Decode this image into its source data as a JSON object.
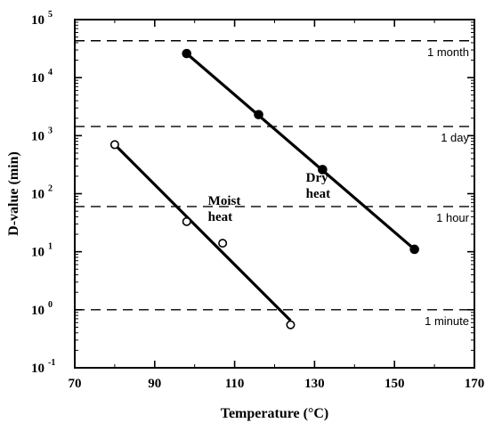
{
  "chart_data": {
    "type": "scatter",
    "title": "",
    "xlabel": "Temperature (°C)",
    "ylabel": "D-value (min)",
    "xlim": [
      70,
      170
    ],
    "x_ticks": [
      70,
      90,
      110,
      130,
      150,
      170
    ],
    "y_scale": "log",
    "ylim": [
      0.1,
      100000
    ],
    "y_ticks": [
      {
        "base": "10",
        "exp": "-1",
        "value": 0.1
      },
      {
        "base": "10",
        "exp": "0",
        "value": 1
      },
      {
        "base": "10",
        "exp": "1",
        "value": 10
      },
      {
        "base": "10",
        "exp": "2",
        "value": 100
      },
      {
        "base": "10",
        "exp": "3",
        "value": 1000
      },
      {
        "base": "10",
        "exp": "4",
        "value": 10000
      },
      {
        "base": "10",
        "exp": "5",
        "value": 100000
      }
    ],
    "grid": false,
    "legend": false,
    "reference_lines": [
      {
        "label": "1 month",
        "y": 43200
      },
      {
        "label": "1 day",
        "y": 1440
      },
      {
        "label": "1 hour",
        "y": 60
      },
      {
        "label": "1 minute",
        "y": 1
      }
    ],
    "series": [
      {
        "name": "Moist heat",
        "marker": "open-circle",
        "line": {
          "x": [
            80,
            124
          ],
          "y": [
            700,
            0.65
          ]
        },
        "points": [
          {
            "x": 80,
            "y": 700
          },
          {
            "x": 98,
            "y": 33
          },
          {
            "x": 107,
            "y": 14
          },
          {
            "x": 124,
            "y": 0.55
          }
        ]
      },
      {
        "name": "Dry heat",
        "marker": "filled-circle",
        "line": {
          "x": [
            98,
            155
          ],
          "y": [
            26000,
            11
          ]
        },
        "points": [
          {
            "x": 98,
            "y": 26000
          },
          {
            "x": 116,
            "y": 2300
          },
          {
            "x": 132,
            "y": 260
          },
          {
            "x": 155,
            "y": 11
          }
        ]
      }
    ],
    "colors": {
      "ink": "#000000",
      "background": "#ffffff"
    }
  }
}
